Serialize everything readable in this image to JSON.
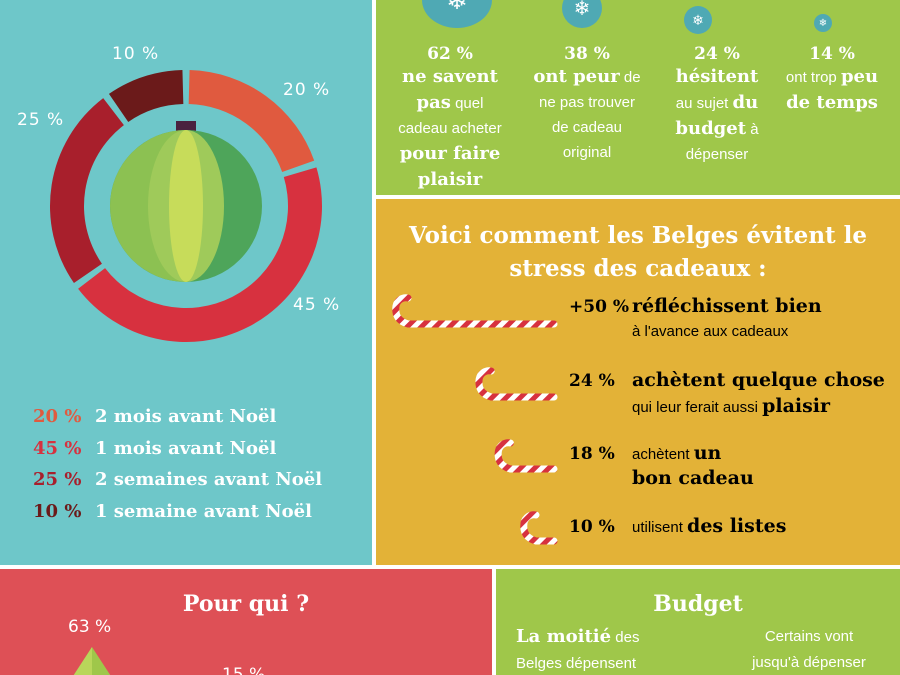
{
  "colors": {
    "teal_bg": "#6ec7c9",
    "green_bg": "#9fc74a",
    "mustard_bg": "#e3b237",
    "red_bg": "#de5056",
    "slice_colors": [
      "#e05a3f",
      "#d7313f",
      "#a81f2c",
      "#6b1a1a"
    ]
  },
  "chart_data": {
    "type": "pie",
    "style": "donut",
    "slices": [
      {
        "label": "2 mois avant Noël",
        "value": 20,
        "value_label": "20 %"
      },
      {
        "label": "1 mois avant Noël",
        "value": 45,
        "value_label": "45 %"
      },
      {
        "label": "2 semaines avant Noël",
        "value": 25,
        "value_label": "25 %"
      },
      {
        "label": "1 semaine avant Noël",
        "value": 10,
        "value_label": "10 %"
      }
    ],
    "legend_placement": "bottom-left"
  },
  "stress": {
    "items": [
      {
        "pct": "62 %",
        "lines": [
          [
            "b",
            "ne savent"
          ],
          [
            "b",
            "pas",
            "n",
            " quel"
          ],
          [
            "n",
            "cadeau acheter"
          ],
          [
            "b",
            "pour faire"
          ],
          [
            "b",
            "plaisir"
          ]
        ],
        "icon": "snowflake-icon"
      },
      {
        "pct": "38 %",
        "lines": [
          [
            "b",
            "ont peur",
            "n",
            " de"
          ],
          [
            "n",
            "ne pas trouver"
          ],
          [
            "n",
            "de cadeau"
          ],
          [
            "n",
            "original"
          ]
        ],
        "icon": "snowflake-icon"
      },
      {
        "pct": "24 %",
        "lines": [
          [
            "b",
            "hésitent"
          ],
          [
            "n",
            "au sujet ",
            "b",
            "du"
          ],
          [
            "b",
            "budget",
            "n",
            " à"
          ],
          [
            "n",
            "dépenser"
          ]
        ],
        "icon": "snowflake-icon"
      },
      {
        "pct": "14 %",
        "lines": [
          [
            "n",
            "ont trop ",
            "b",
            "peu"
          ],
          [
            "b",
            "de temps"
          ]
        ],
        "icon": "snowflake-icon"
      }
    ]
  },
  "avoid": {
    "title_line1": "Voici comment les Belges évitent le",
    "title_line2": "stress des cadeaux :",
    "items": [
      {
        "pct": "+50 %",
        "value": 50,
        "line1": [
          [
            "b",
            "réfléchissent bien"
          ]
        ],
        "line2": [
          [
            "n",
            "à l'avance aux cadeaux"
          ]
        ]
      },
      {
        "pct": "24 %",
        "value": 24,
        "line1": [
          [
            "b",
            "achètent quelque chose"
          ]
        ],
        "line2": [
          [
            "n",
            "qui leur ferait aussi "
          ],
          [
            "b",
            "plaisir"
          ]
        ]
      },
      {
        "pct": "18 %",
        "value": 18,
        "line1": [
          [
            "n",
            "achètent "
          ],
          [
            "b",
            "un"
          ]
        ],
        "line2": [
          [
            "b",
            "bon cadeau"
          ]
        ]
      },
      {
        "pct": "10 %",
        "value": 10,
        "line1": [
          [
            "n",
            "utilisent "
          ],
          [
            "b",
            "des listes"
          ]
        ],
        "line2": []
      }
    ]
  },
  "who": {
    "title": "Pour qui ?",
    "pct_visible": "63 %",
    "pct_partial": "15 %"
  },
  "budget": {
    "title": "Budget",
    "left_line1_bold": "La moitié",
    "left_line1_rest": " des",
    "left_line2": "Belges dépensent",
    "right_line1": "Certains vont",
    "right_line2": "jusqu'à dépenser"
  }
}
